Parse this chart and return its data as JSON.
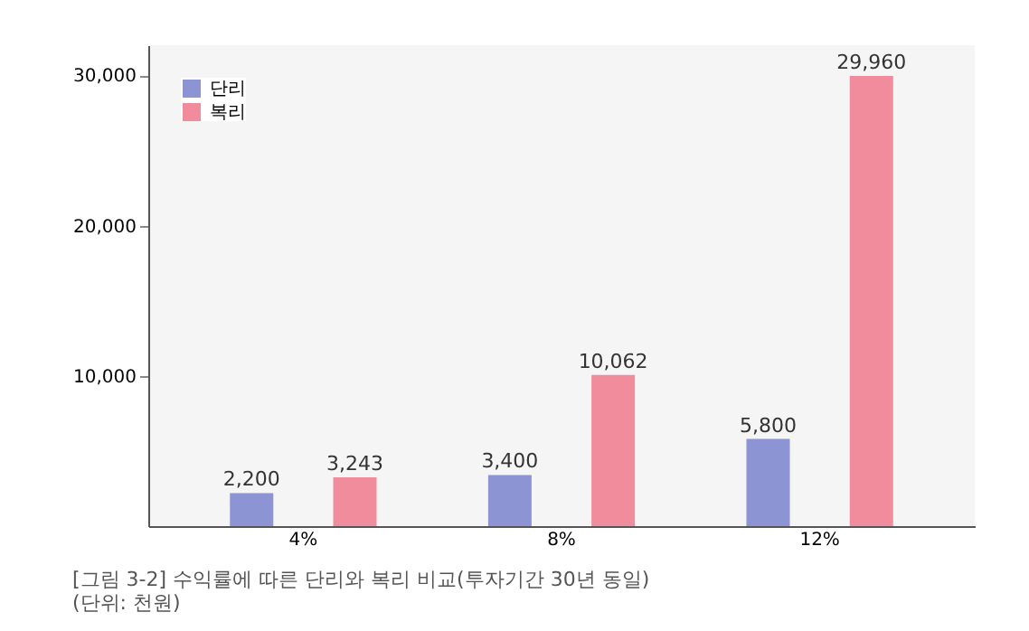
{
  "chart_data": {
    "type": "bar",
    "categories": [
      "4%",
      "8%",
      "12%"
    ],
    "series": [
      {
        "name": "단리",
        "color": "#8c94d4",
        "values": [
          2200,
          3400,
          5800
        ],
        "value_labels": [
          "2,200",
          "3,400",
          "5,800"
        ]
      },
      {
        "name": "복리",
        "color": "#f08c9c",
        "values": [
          3243,
          10062,
          29960
        ],
        "value_labels": [
          "3,243",
          "10,062",
          "29,960"
        ]
      }
    ],
    "ylim": [
      0,
      32000
    ],
    "yticks": [
      {
        "value": 10000,
        "label": "10,000"
      },
      {
        "value": 20000,
        "label": "20,000"
      },
      {
        "value": 30000,
        "label": "30,000"
      }
    ],
    "grid": false,
    "legend": "top left",
    "annotations": [
      "[그림 3-2] 수익률에 따른 단리와 복리 비교(투자기간 30년 동일)",
      "(단위: 천원)"
    ]
  }
}
